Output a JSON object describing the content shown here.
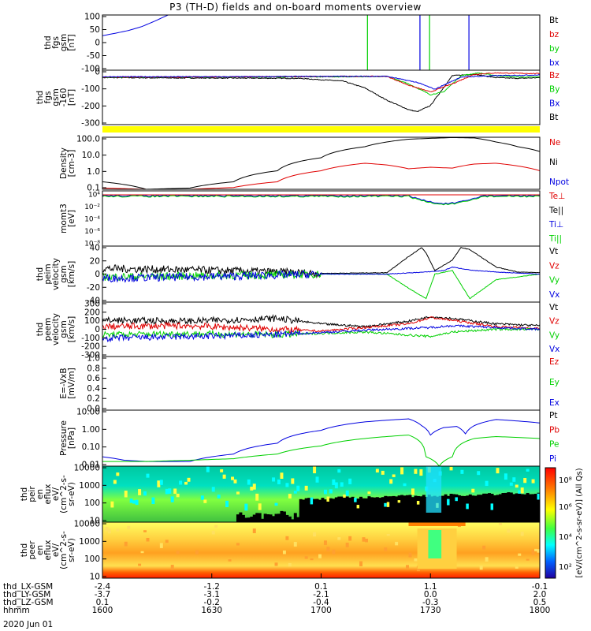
{
  "title": "P3 (TH-D) fields and on-board moments overview",
  "colors": {
    "black": "#000000",
    "red": "#e00000",
    "green": "#00d000",
    "blue": "#0000e0",
    "yellow": "#ffff00"
  },
  "chart_data": [
    {
      "type": "line",
      "panel": "fgs",
      "ylabel_lines": [
        "thd",
        "fgs",
        "gsm",
        "[nT]"
      ],
      "ylim": [
        -100,
        100
      ],
      "yticks": [
        "100",
        "50",
        "0",
        "-50",
        "-100"
      ],
      "legend": [
        {
          "label": "Bt",
          "color": "black"
        },
        {
          "label": "bz",
          "color": "red"
        },
        {
          "label": "by",
          "color": "green"
        },
        {
          "label": "bx",
          "color": "blue"
        }
      ],
      "series": [
        {
          "name": "bx",
          "color": "blue",
          "x": [
            0,
            0.03,
            0.06,
            0.09,
            0.12,
            0.15
          ],
          "y": [
            25,
            34,
            44,
            58,
            78,
            100
          ]
        }
      ],
      "vlines": [
        {
          "x": 0.606,
          "color": "green"
        },
        {
          "x": 0.726,
          "color": "blue"
        },
        {
          "x": 0.748,
          "color": "green"
        },
        {
          "x": 0.838,
          "color": "blue"
        }
      ]
    },
    {
      "type": "line",
      "panel": "fgs_avg",
      "ylabel_lines": [
        "thd",
        "fgs",
        "gsm",
        "-160",
        "[nT]"
      ],
      "ylim": [
        -340,
        60
      ],
      "yticks": [
        "0",
        "-100",
        "-200",
        "-300"
      ],
      "legend": [
        {
          "label": "Bz",
          "color": "red"
        },
        {
          "label": "By",
          "color": "green"
        },
        {
          "label": "Bx",
          "color": "blue"
        },
        {
          "label": "Bt",
          "color": "black"
        }
      ],
      "series": [
        {
          "name": "Bt",
          "color": "black",
          "x": [
            0,
            0.15,
            0.3,
            0.45,
            0.55,
            0.6,
            0.65,
            0.7,
            0.72,
            0.75,
            0.8,
            0.85,
            0.9,
            0.95,
            1
          ],
          "y": [
            5,
            3,
            2,
            0,
            -20,
            -70,
            -160,
            -230,
            -245,
            -200,
            20,
            30,
            5,
            0,
            5
          ]
        },
        {
          "name": "By",
          "color": "green",
          "x": [
            0,
            0.2,
            0.4,
            0.55,
            0.65,
            0.7,
            0.75,
            0.78,
            0.82,
            0.86,
            0.9,
            0.95,
            1
          ],
          "y": [
            8,
            10,
            10,
            12,
            15,
            -40,
            -120,
            -100,
            20,
            40,
            20,
            10,
            10
          ]
        },
        {
          "name": "Bz",
          "color": "red",
          "x": [
            0,
            0.2,
            0.4,
            0.55,
            0.65,
            0.7,
            0.75,
            0.8,
            0.85,
            0.9,
            1
          ],
          "y": [
            10,
            10,
            12,
            15,
            15,
            -50,
            -100,
            -40,
            30,
            40,
            35
          ]
        },
        {
          "name": "Bx",
          "color": "blue",
          "x": [
            0,
            0.3,
            0.5,
            0.65,
            0.72,
            0.76,
            0.82,
            0.9,
            1
          ],
          "y": [
            12,
            12,
            15,
            15,
            -30,
            -80,
            10,
            20,
            25
          ]
        }
      ]
    },
    {
      "type": "bar",
      "panel": "quality",
      "color": "yellow"
    },
    {
      "type": "line",
      "panel": "density",
      "ylabel_lines": [
        "Density",
        "[cm-3]"
      ],
      "yscale": "log",
      "ylim": [
        0.1,
        200
      ],
      "yticks": [
        "100.0",
        "10.0",
        "1.0",
        "0.1"
      ],
      "legend": [
        {
          "label": "Ne",
          "color": "red"
        },
        {
          "label": "Ni",
          "color": "black"
        },
        {
          "label": "Npot",
          "color": "blue"
        }
      ],
      "series": [
        {
          "name": "Ni",
          "color": "black",
          "x": [
            0,
            0.05,
            0.1,
            0.2,
            0.3,
            0.4,
            0.5,
            0.6,
            0.7,
            0.8,
            0.85,
            0.9,
            0.95,
            1
          ],
          "y": [
            0.3,
            0.2,
            0.1,
            0.12,
            0.3,
            1.5,
            10,
            50,
            150,
            190,
            180,
            100,
            50,
            25
          ]
        },
        {
          "name": "Ne",
          "color": "red",
          "x": [
            0,
            0.1,
            0.2,
            0.3,
            0.4,
            0.5,
            0.6,
            0.65,
            0.7,
            0.75,
            0.8,
            0.85,
            0.9,
            0.95,
            1
          ],
          "y": [
            0.12,
            0.1,
            0.1,
            0.13,
            0.3,
            1.5,
            4.5,
            3.5,
            2,
            2.5,
            2.2,
            4,
            4.5,
            3,
            1.5
          ]
        }
      ]
    },
    {
      "type": "line",
      "panel": "mom_temp",
      "ylabel_lines": [
        "momt3",
        "[eV]"
      ],
      "legend": [
        {
          "label": "Te⊥",
          "color": "red"
        },
        {
          "label": "Te||",
          "color": "black"
        },
        {
          "label": "Ti⊥",
          "color": "blue"
        },
        {
          "label": "Ti||",
          "color": "green"
        }
      ]
    },
    {
      "type": "line",
      "panel": "peim_velocity",
      "ylabel_lines": [
        "thd",
        "peim",
        "velocity",
        "gsm",
        "[km/s]"
      ],
      "ylim": [
        -40,
        40
      ],
      "yticks": [
        "40",
        "20",
        "0",
        "-20",
        "-40"
      ],
      "legend": [
        {
          "label": "Vt",
          "color": "black"
        },
        {
          "label": "Vz",
          "color": "red"
        },
        {
          "label": "Vy",
          "color": "green"
        },
        {
          "label": "Vx",
          "color": "blue"
        }
      ],
      "series": [
        {
          "name": "Vt",
          "color": "black",
          "x": [
            0,
            0.2,
            0.35,
            0.5,
            0.65,
            0.7,
            0.73,
            0.74,
            0.76,
            0.8,
            0.82,
            0.84,
            0.9,
            0.95,
            1
          ],
          "y": [
            8,
            6,
            4,
            1,
            2,
            25,
            38,
            30,
            5,
            20,
            38,
            35,
            10,
            3,
            2
          ]
        },
        {
          "name": "Vy",
          "color": "green",
          "x": [
            0,
            0.3,
            0.5,
            0.65,
            0.7,
            0.74,
            0.76,
            0.8,
            0.84,
            0.9,
            1
          ],
          "y": [
            -4,
            -2,
            0,
            0,
            -20,
            -35,
            0,
            5,
            -35,
            -8,
            0
          ]
        },
        {
          "name": "Vx",
          "color": "blue",
          "x": [
            0,
            0.3,
            0.5,
            0.65,
            0.74,
            0.78,
            0.8,
            0.85,
            0.9,
            1
          ],
          "y": [
            -6,
            -3,
            0,
            0,
            3,
            5,
            10,
            5,
            3,
            0
          ]
        }
      ]
    },
    {
      "type": "line",
      "panel": "peem_velocity",
      "ylabel_lines": [
        "thd",
        "peem",
        "velocity",
        "gsm",
        "[km/s]"
      ],
      "ylim": [
        -300,
        300
      ],
      "yticks": [
        "300",
        "200",
        "100",
        "0",
        "-100",
        "-200",
        "-300"
      ],
      "legend": [
        {
          "label": "Vt",
          "color": "black"
        },
        {
          "label": "Vz",
          "color": "red"
        },
        {
          "label": "Vy",
          "color": "green"
        },
        {
          "label": "Vx",
          "color": "blue"
        }
      ],
      "series": [
        {
          "name": "Vt",
          "color": "black",
          "x": [
            0,
            0.2,
            0.4,
            0.5,
            0.6,
            0.7,
            0.75,
            0.8,
            0.9,
            1
          ],
          "y": [
            100,
            90,
            120,
            60,
            30,
            90,
            140,
            120,
            60,
            40
          ]
        },
        {
          "name": "Vz",
          "color": "red",
          "x": [
            0,
            0.2,
            0.4,
            0.5,
            0.6,
            0.7,
            0.75,
            0.8,
            0.9,
            1
          ],
          "y": [
            30,
            40,
            0,
            -20,
            20,
            60,
            130,
            100,
            30,
            10
          ]
        },
        {
          "name": "Vy",
          "color": "green",
          "x": [
            0,
            0.2,
            0.4,
            0.6,
            0.75,
            0.8,
            0.9,
            1
          ],
          "y": [
            -60,
            -50,
            -60,
            -30,
            -80,
            -30,
            0,
            0
          ]
        },
        {
          "name": "Vx",
          "color": "blue",
          "x": [
            0,
            0.2,
            0.4,
            0.6,
            0.75,
            0.8,
            0.9,
            1
          ],
          "y": [
            -100,
            -80,
            -60,
            -10,
            20,
            40,
            20,
            0
          ]
        }
      ]
    },
    {
      "type": "line",
      "panel": "efield",
      "ylabel_lines": [
        "E=-VxB",
        "[mV/m]"
      ],
      "ylim": [
        0,
        1
      ],
      "yticks": [
        "1.0",
        "0.8",
        "0.6",
        "0.4",
        "0.2",
        "0.0"
      ],
      "legend": [
        {
          "label": "Ez",
          "color": "red"
        },
        {
          "label": "Ey",
          "color": "green"
        },
        {
          "label": "Ex",
          "color": "blue"
        }
      ]
    },
    {
      "type": "line",
      "panel": "pressure",
      "ylabel_lines": [
        "Pressure",
        "[nPa]"
      ],
      "yscale": "log",
      "ylim": [
        0.005,
        20
      ],
      "yticks": [
        "10.00",
        "1.00",
        "0.10",
        "0.01"
      ],
      "legend": [
        {
          "label": "Pt",
          "color": "black"
        },
        {
          "label": "Pb",
          "color": "red"
        },
        {
          "label": "Pe",
          "color": "green"
        },
        {
          "label": "Pi",
          "color": "blue"
        }
      ],
      "series": [
        {
          "name": "Pi",
          "color": "blue",
          "x": [
            0,
            0.05,
            0.1,
            0.2,
            0.3,
            0.4,
            0.5,
            0.6,
            0.7,
            0.73,
            0.75,
            0.78,
            0.81,
            0.83,
            0.85,
            0.9,
            1
          ],
          "y": [
            0.02,
            0.012,
            0.01,
            0.01,
            0.03,
            0.15,
            1.0,
            3.5,
            5.5,
            2,
            0.5,
            1.5,
            1.8,
            0.6,
            2,
            5,
            3
          ]
        },
        {
          "name": "Pe",
          "color": "green",
          "x": [
            0,
            0.1,
            0.2,
            0.3,
            0.4,
            0.5,
            0.6,
            0.7,
            0.74,
            0.77,
            0.8,
            0.85,
            0.9,
            1
          ],
          "y": [
            0.01,
            0.01,
            0.012,
            0.015,
            0.03,
            0.1,
            0.3,
            0.5,
            0.02,
            0.005,
            0.02,
            0.3,
            0.4,
            0.3
          ]
        }
      ]
    },
    {
      "type": "heatmap",
      "panel": "peir_en_eflux",
      "ylabel_lines": [
        "thd",
        "peir",
        "en",
        "eflux",
        "eV/",
        "(cm^2-s-",
        "sr-eV)"
      ],
      "yscale": "log",
      "yticks": [
        "10000",
        "1000",
        "100",
        "10"
      ]
    },
    {
      "type": "heatmap",
      "panel": "peer_en_eflux",
      "ylabel_lines": [
        "thd",
        "peer",
        "en",
        "eflux",
        "eV/",
        "(cm^2-s-",
        "sr-eV)"
      ],
      "yscale": "log",
      "yticks": [
        "10000",
        "1000",
        "100",
        "10"
      ],
      "colorbar": {
        "label": "[eV/(cm^2-s-sr-eV)] (All Qs)",
        "ticks": [
          "10⁸",
          "10⁶",
          "10⁴",
          "10²"
        ]
      }
    }
  ],
  "x_axis": {
    "rows": [
      {
        "label": "thd_LX-GSM",
        "values": [
          "-2.4",
          "-1.2",
          "0.1",
          "1.1",
          "-0.1"
        ]
      },
      {
        "label": "thd_LY-GSM",
        "values": [
          "-3.7",
          "-3.1",
          "-2.1",
          "0.0",
          "2.0"
        ]
      },
      {
        "label": "thd_LZ-GSM",
        "values": [
          "0.1",
          "-0.2",
          "-0.4",
          "-0.3",
          "0.5"
        ]
      },
      {
        "label": "hhmm",
        "values": [
          "1600",
          "1630",
          "1700",
          "1730",
          "1800"
        ]
      }
    ],
    "date": "2020 Jun 01"
  }
}
